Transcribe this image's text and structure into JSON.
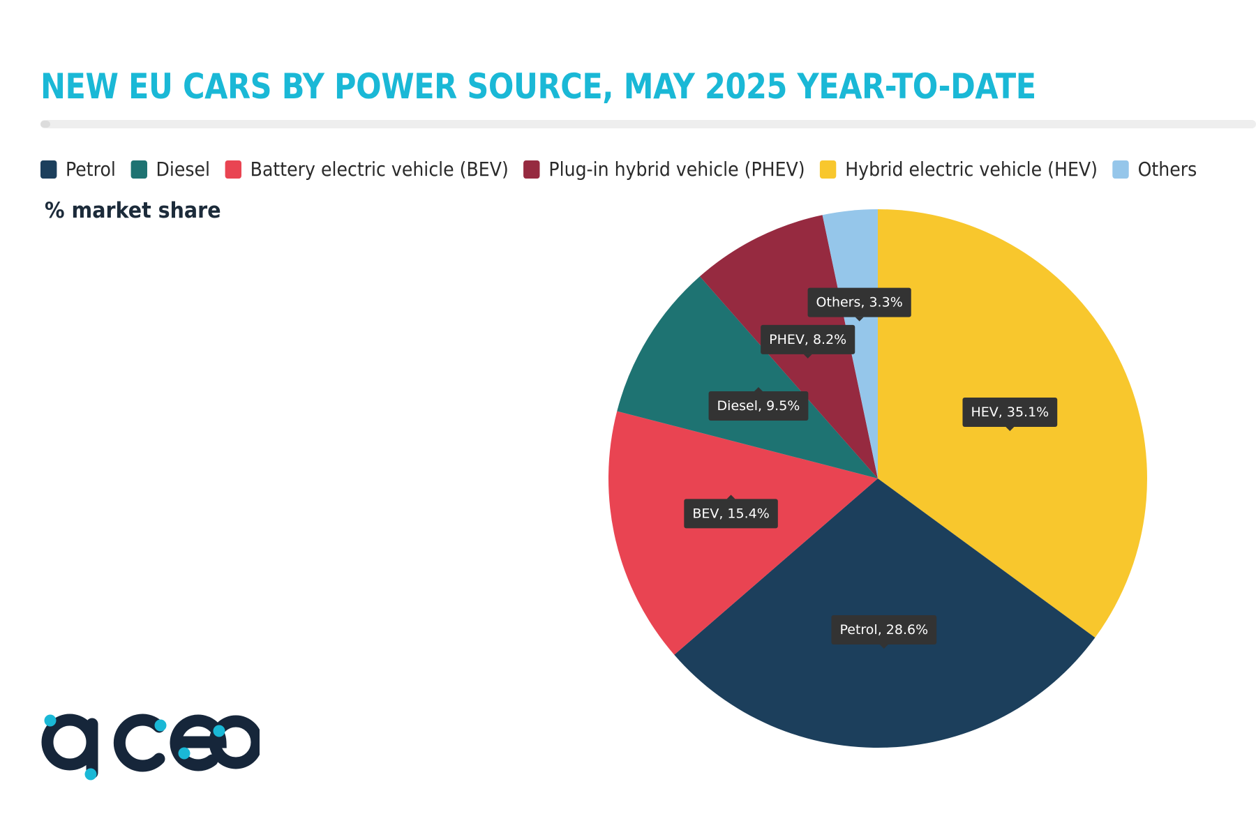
{
  "title": "NEW EU CARS BY POWER SOURCE, MAY 2025 YEAR-TO-DATE",
  "subtitle": "% market share",
  "logo": {
    "text": "acea",
    "color": "#16263a",
    "accent": "#1ab8d6"
  },
  "colors": {
    "title": "#1ab8d6",
    "label_bg": "#333333",
    "label_text": "#ffffff"
  },
  "legend": [
    {
      "label": "Petrol",
      "color": "#1c3f5c"
    },
    {
      "label": "Diesel",
      "color": "#1e7372"
    },
    {
      "label": "Battery electric vehicle (BEV)",
      "color": "#e94452"
    },
    {
      "label": "Plug-in hybrid vehicle (PHEV)",
      "color": "#962a40"
    },
    {
      "label": "Hybrid electric vehicle (HEV)",
      "color": "#f8c72d"
    },
    {
      "label": "Others",
      "color": "#95c6ea"
    }
  ],
  "chart_data": {
    "type": "pie",
    "title": "NEW EU CARS BY POWER SOURCE, MAY 2025 YEAR-TO-DATE",
    "subtitle": "% market share",
    "unit": "%",
    "legend_position": "top-left",
    "start_angle_deg": 0,
    "direction": "clockwise",
    "slices": [
      {
        "key": "hev",
        "name": "Hybrid electric vehicle (HEV)",
        "label": "HEV, 35.1%",
        "value": 35.1,
        "color": "#f8c72d"
      },
      {
        "key": "petrol",
        "name": "Petrol",
        "label": "Petrol, 28.6%",
        "value": 28.6,
        "color": "#1c3f5c"
      },
      {
        "key": "bev",
        "name": "Battery electric vehicle (BEV)",
        "label": "BEV, 15.4%",
        "value": 15.4,
        "color": "#e94452"
      },
      {
        "key": "diesel",
        "name": "Diesel",
        "label": "Diesel, 9.5%",
        "value": 9.5,
        "color": "#1e7372"
      },
      {
        "key": "phev",
        "name": "Plug-in hybrid vehicle (PHEV)",
        "label": "PHEV, 8.2%",
        "value": 8.2,
        "color": "#962a40"
      },
      {
        "key": "others",
        "name": "Others",
        "label": "Others, 3.3%",
        "value": 3.3,
        "color": "#95c6ea"
      }
    ]
  }
}
